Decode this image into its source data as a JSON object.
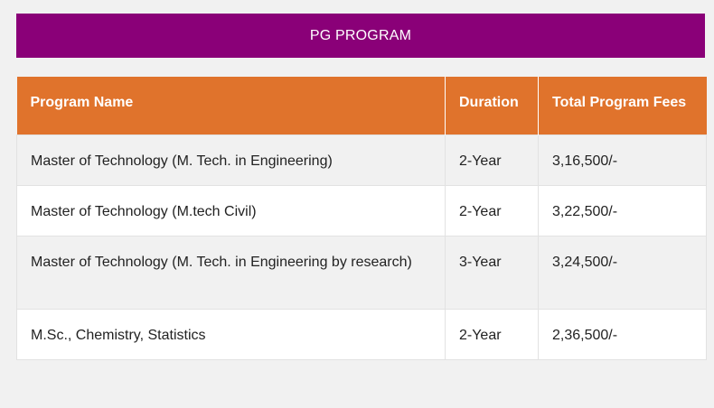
{
  "banner": {
    "title": "PG PROGRAM"
  },
  "table": {
    "headers": [
      "Program Name",
      "Duration",
      "Total Program Fees"
    ],
    "rows": [
      {
        "program": "Master of Technology (M. Tech. in Engineering)",
        "duration": "2-Year",
        "fees": "3,16,500/-"
      },
      {
        "program": "Master of Technology (M.tech Civil)",
        "duration": "2-Year",
        "fees": "3,22,500/-"
      },
      {
        "program": "Master of Technology (M. Tech. in Engineering by research)",
        "duration": "3-Year",
        "fees": "3,24,500/-"
      },
      {
        "program": "M.Sc., Chemistry, Statistics",
        "duration": "2-Year",
        "fees": "2,36,500/-"
      }
    ]
  },
  "colors": {
    "banner_bg": "#8a0078",
    "header_bg": "#e0732c",
    "page_bg": "#f1f1f1"
  }
}
